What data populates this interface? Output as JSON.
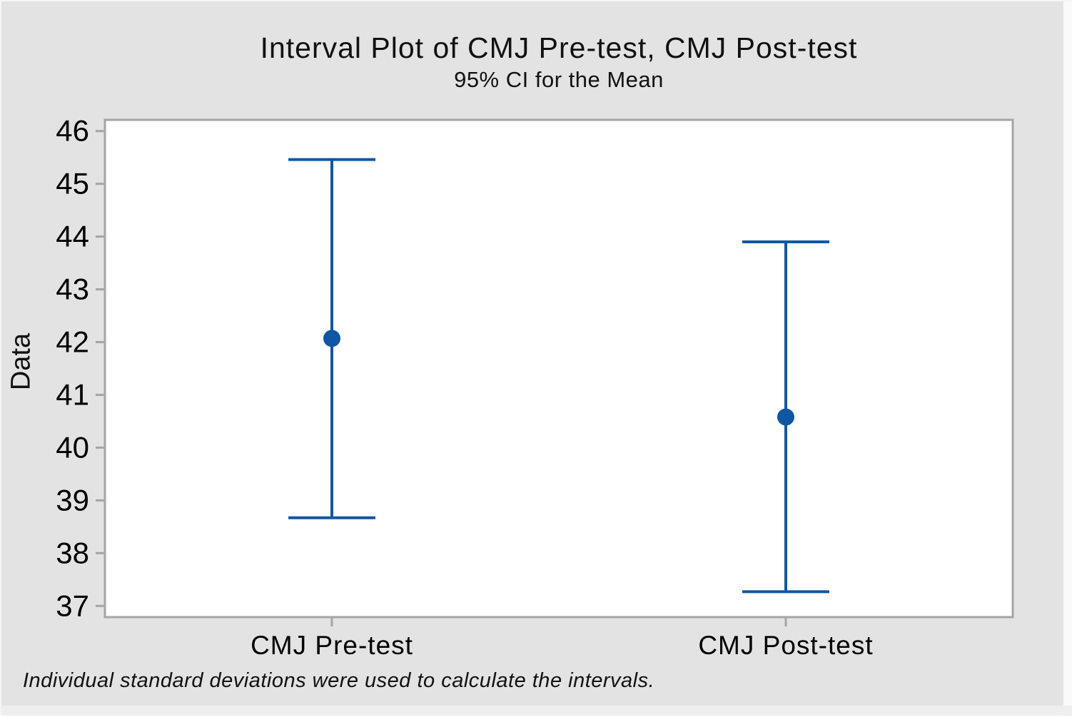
{
  "chart_data": {
    "type": "interval",
    "title": "Interval Plot of CMJ Pre-test, CMJ Post-test",
    "subtitle": "95% CI for the Mean",
    "ylabel": "Data",
    "xlabel": "",
    "footnote": "Individual standard deviations were used to calculate the intervals.",
    "categories": [
      "CMJ Pre-test",
      "CMJ Post-test"
    ],
    "series": [
      {
        "name": "CMJ Pre-test",
        "mean": 42.07,
        "ci_low": 38.67,
        "ci_high": 45.46
      },
      {
        "name": "CMJ Post-test",
        "mean": 40.58,
        "ci_low": 37.27,
        "ci_high": 43.9
      }
    ],
    "ylim": [
      37,
      46
    ],
    "yticks": [
      46,
      45,
      44,
      43,
      42,
      41,
      40,
      39,
      38,
      37
    ],
    "grid": false,
    "legend": "none",
    "colors": {
      "interval": "#0f56a4",
      "frame": "#a5a5a5",
      "tick": "#a5a5a5",
      "plot_bg": "#ffffff",
      "canvas_bg": "#e3e3e4",
      "text": "#000000"
    }
  }
}
